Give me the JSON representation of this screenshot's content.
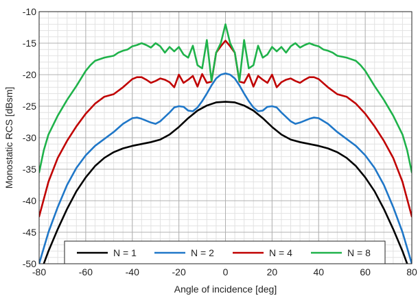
{
  "chart_data": {
    "type": "line",
    "xlabel": "Angle of incidence [deg]",
    "ylabel": "Monostatic RCS [dBsm]",
    "xlim": [
      -80,
      80
    ],
    "ylim": [
      -50,
      -10
    ],
    "x_ticks": [
      -80,
      -60,
      -40,
      -20,
      0,
      20,
      40,
      60,
      80
    ],
    "y_ticks": [
      -10,
      -15,
      -20,
      -25,
      -30,
      -35,
      -40,
      -45,
      -50
    ],
    "grid": true,
    "legend_position": "bottom",
    "series": [
      {
        "name": "N = 1",
        "color": "#000000",
        "x": [
          -80,
          -76,
          -72,
          -68,
          -64,
          -60,
          -56,
          -52,
          -48,
          -44,
          -40,
          -36,
          -32,
          -28,
          -24,
          -20,
          -16,
          -12,
          -8,
          -4,
          0,
          4,
          8,
          12,
          16,
          20,
          24,
          28,
          32,
          36,
          40,
          44,
          48,
          52,
          56,
          60,
          64,
          68,
          72,
          76,
          80
        ],
        "y": [
          -52,
          -48,
          -44.5,
          -41.3,
          -38.5,
          -36.3,
          -34.5,
          -33.2,
          -32.3,
          -31.7,
          -31.3,
          -31,
          -30.7,
          -30.3,
          -29.5,
          -28.3,
          -26.9,
          -25.7,
          -24.9,
          -24.4,
          -24.3,
          -24.4,
          -24.9,
          -25.7,
          -26.9,
          -28.3,
          -29.5,
          -30.3,
          -30.7,
          -31,
          -31.3,
          -31.7,
          -32.3,
          -33.2,
          -34.5,
          -36.3,
          -38.5,
          -41.3,
          -44.5,
          -48,
          -52
        ]
      },
      {
        "name": "N = 2",
        "color": "#1f77c8",
        "x": [
          -80,
          -76,
          -72,
          -68,
          -64,
          -60,
          -56,
          -52,
          -48,
          -44,
          -40,
          -38,
          -36,
          -32,
          -30,
          -28,
          -24,
          -22,
          -20,
          -18,
          -16,
          -14,
          -12,
          -10,
          -8,
          -6,
          -4,
          -2,
          0,
          2,
          4,
          6,
          8,
          10,
          12,
          14,
          16,
          18,
          20,
          22,
          24,
          28,
          30,
          32,
          36,
          38,
          40,
          44,
          48,
          52,
          56,
          60,
          64,
          68,
          72,
          76,
          80
        ],
        "y": [
          -50,
          -45,
          -41,
          -37.5,
          -34.8,
          -32.8,
          -31.3,
          -30.2,
          -29.1,
          -27.8,
          -26.9,
          -26.8,
          -27,
          -27.6,
          -27.8,
          -27.4,
          -26,
          -25.2,
          -25,
          -25.1,
          -25.7,
          -25.8,
          -25.2,
          -24.2,
          -23,
          -21.7,
          -20.6,
          -20,
          -19.8,
          -20,
          -20.6,
          -21.7,
          -23,
          -24.2,
          -25.2,
          -25.8,
          -25.7,
          -25.1,
          -25,
          -25.2,
          -26,
          -27.4,
          -27.8,
          -27.6,
          -27,
          -26.8,
          -26.9,
          -27.8,
          -29.1,
          -30.2,
          -31.3,
          -32.8,
          -34.8,
          -37.5,
          -41,
          -45,
          -50
        ]
      },
      {
        "name": "N = 4",
        "color": "#c00000",
        "x": [
          -80,
          -76,
          -72,
          -68,
          -64,
          -60,
          -56,
          -52,
          -48,
          -44,
          -40,
          -38,
          -36,
          -34,
          -32,
          -30,
          -28,
          -26,
          -24,
          -22,
          -20,
          -18,
          -16,
          -14,
          -12,
          -10,
          -8,
          -6,
          -4,
          -2,
          0,
          2,
          4,
          6,
          8,
          10,
          12,
          14,
          16,
          18,
          20,
          22,
          24,
          26,
          28,
          30,
          32,
          34,
          36,
          38,
          40,
          44,
          48,
          52,
          56,
          60,
          64,
          68,
          72,
          76,
          80
        ],
        "y": [
          -42.5,
          -37,
          -33.2,
          -30.5,
          -28.2,
          -26.2,
          -24.6,
          -23.5,
          -23.1,
          -22,
          -20.7,
          -20.4,
          -20.4,
          -20.8,
          -21.3,
          -21,
          -20.6,
          -20.8,
          -21.2,
          -22,
          -20,
          -21.3,
          -20.8,
          -20.2,
          -21.9,
          -19.9,
          -21.3,
          -21.1,
          -16.5,
          -15.5,
          -14.6,
          -15.5,
          -16.5,
          -21.1,
          -21.3,
          -19.9,
          -21.9,
          -20.2,
          -20.8,
          -21.3,
          -20,
          -22,
          -21.2,
          -20.8,
          -20.6,
          -21,
          -21.3,
          -20.8,
          -20.4,
          -20.4,
          -20.7,
          -22,
          -23.1,
          -23.5,
          -24.6,
          -26.2,
          -28.2,
          -30.5,
          -33.2,
          -37,
          -42.5
        ]
      },
      {
        "name": "N = 8",
        "color": "#1fb24a",
        "x": [
          -80,
          -78,
          -76,
          -72,
          -68,
          -64,
          -60,
          -58,
          -56,
          -52,
          -48,
          -46,
          -44,
          -42,
          -40,
          -38,
          -36,
          -34,
          -32,
          -30,
          -28,
          -26,
          -24,
          -22,
          -20,
          -18,
          -16,
          -14,
          -12,
          -10,
          -8,
          -6,
          -4,
          -2,
          0,
          2,
          4,
          6,
          8,
          10,
          12,
          14,
          16,
          18,
          20,
          22,
          24,
          26,
          28,
          30,
          32,
          34,
          36,
          38,
          40,
          42,
          44,
          46,
          48,
          52,
          56,
          58,
          60,
          64,
          68,
          72,
          76,
          78,
          80
        ],
        "y": [
          -35.5,
          -32,
          -29.5,
          -26.5,
          -24,
          -21.8,
          -19.4,
          -18.5,
          -17.8,
          -17.3,
          -17,
          -16.5,
          -16.2,
          -16,
          -15.5,
          -15.3,
          -15,
          -15.3,
          -15.7,
          -15,
          -15.5,
          -16.5,
          -15.6,
          -16.3,
          -15.6,
          -16.8,
          -17.3,
          -15.4,
          -18.5,
          -19,
          -14.5,
          -21,
          -16.5,
          -15,
          -12,
          -15,
          -16.5,
          -21,
          -14.5,
          -19,
          -18.5,
          -15.4,
          -17.3,
          -16.8,
          -15.6,
          -16.3,
          -15.6,
          -16.5,
          -15.5,
          -15,
          -15.7,
          -15.3,
          -15,
          -15.3,
          -15.5,
          -16,
          -16.2,
          -16.5,
          -17,
          -17.3,
          -17.8,
          -18.5,
          -19.4,
          -21.8,
          -24,
          -26.5,
          -29.5,
          -32,
          -35.5
        ]
      }
    ]
  }
}
